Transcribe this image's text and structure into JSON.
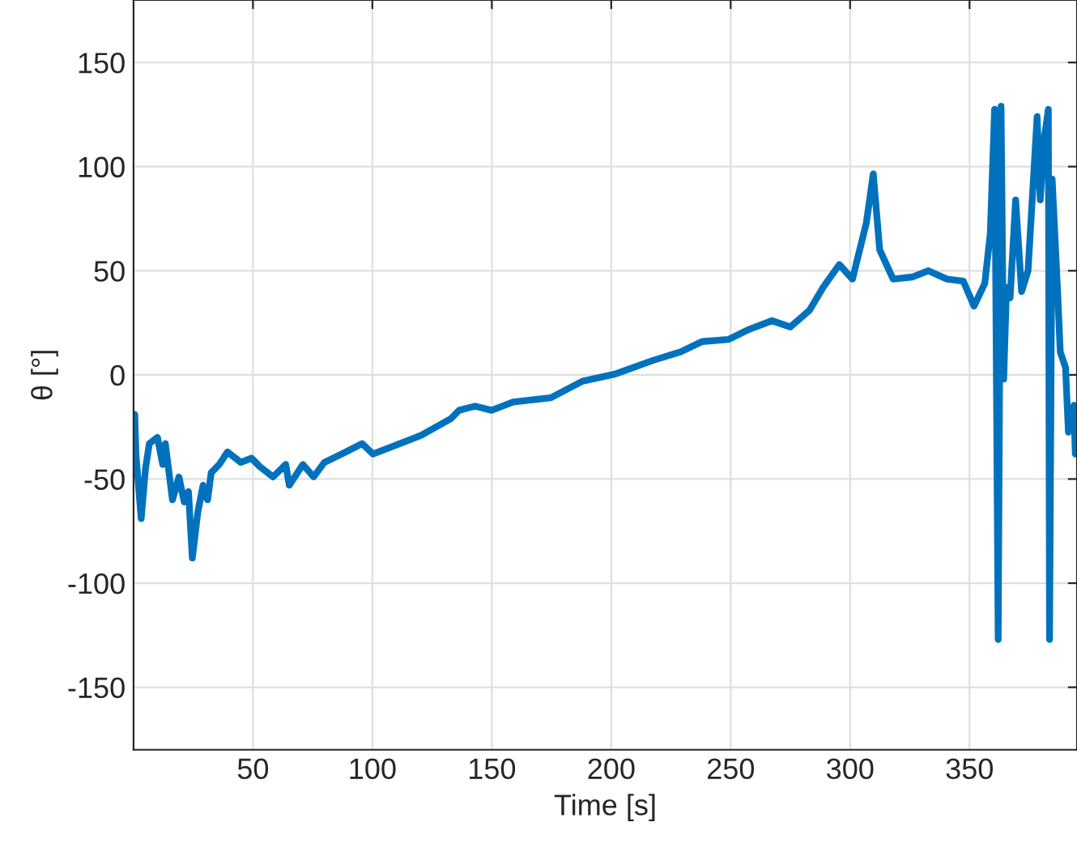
{
  "chart_data": {
    "type": "line",
    "xlabel": "Time [s]",
    "ylabel": "θ [°]",
    "xlim": [
      0,
      395
    ],
    "ylim": [
      -180,
      180
    ],
    "xticks": [
      50,
      100,
      150,
      200,
      250,
      300,
      350
    ],
    "yticks": [
      -150,
      -100,
      -50,
      0,
      50,
      100,
      150
    ],
    "grid": true,
    "series": [
      {
        "color": "#0072bd",
        "x": [
          0.5,
          1,
          3.2,
          5,
          6.6,
          10,
          12.2,
          13.3,
          16.3,
          19,
          21.2,
          23,
          24.6,
          26.9,
          29.1,
          31,
          32.5,
          35.9,
          39.3,
          44.9,
          49.4,
          52.8,
          58.4,
          63.7,
          65.2,
          70.9,
          75.4,
          79.9,
          88.9,
          95.7,
          100.2,
          107,
          120.5,
          132.9,
          136.3,
          143,
          149.9,
          158.9,
          174.7,
          188,
          201.6,
          217.6,
          229,
          238,
          249,
          258,
          267.3,
          275,
          283,
          288.7,
          295.5,
          301,
          306.8,
          309.7,
          312.4,
          318,
          326,
          332.7,
          340.6,
          347.4,
          351.9,
          356.4,
          358.7,
          360.5,
          362,
          363.2,
          364.3,
          365.5,
          367,
          369.3,
          371.8,
          374.5,
          378.3,
          379.6,
          381.4,
          383,
          383.5,
          384.6,
          386.8,
          388,
          390.2,
          391.4,
          393.7,
          394.3
        ],
        "values": [
          -19,
          -38,
          -69,
          -45,
          -33,
          -30,
          -43,
          -33,
          -60,
          -49,
          -61,
          -56,
          -88,
          -66,
          -53,
          -60,
          -47,
          -43,
          -37,
          -42,
          -40,
          -44,
          -49,
          -43,
          -53,
          -43,
          -49,
          -42,
          -37,
          -33,
          -38,
          -35,
          -29,
          -21,
          -17,
          -15,
          -17,
          -13,
          -11,
          -3,
          0.4,
          7,
          11,
          16,
          17,
          22,
          26,
          23,
          31,
          42,
          53,
          46,
          73,
          96.5,
          60,
          46,
          47,
          50,
          46,
          45,
          33,
          44,
          68,
          127.5,
          -127,
          129,
          -2,
          42,
          37,
          84,
          40,
          50,
          124,
          84,
          114.5,
          127.5,
          -127,
          94,
          42,
          11,
          3.5,
          -27.5,
          -14.6,
          -38
        ]
      }
    ]
  }
}
